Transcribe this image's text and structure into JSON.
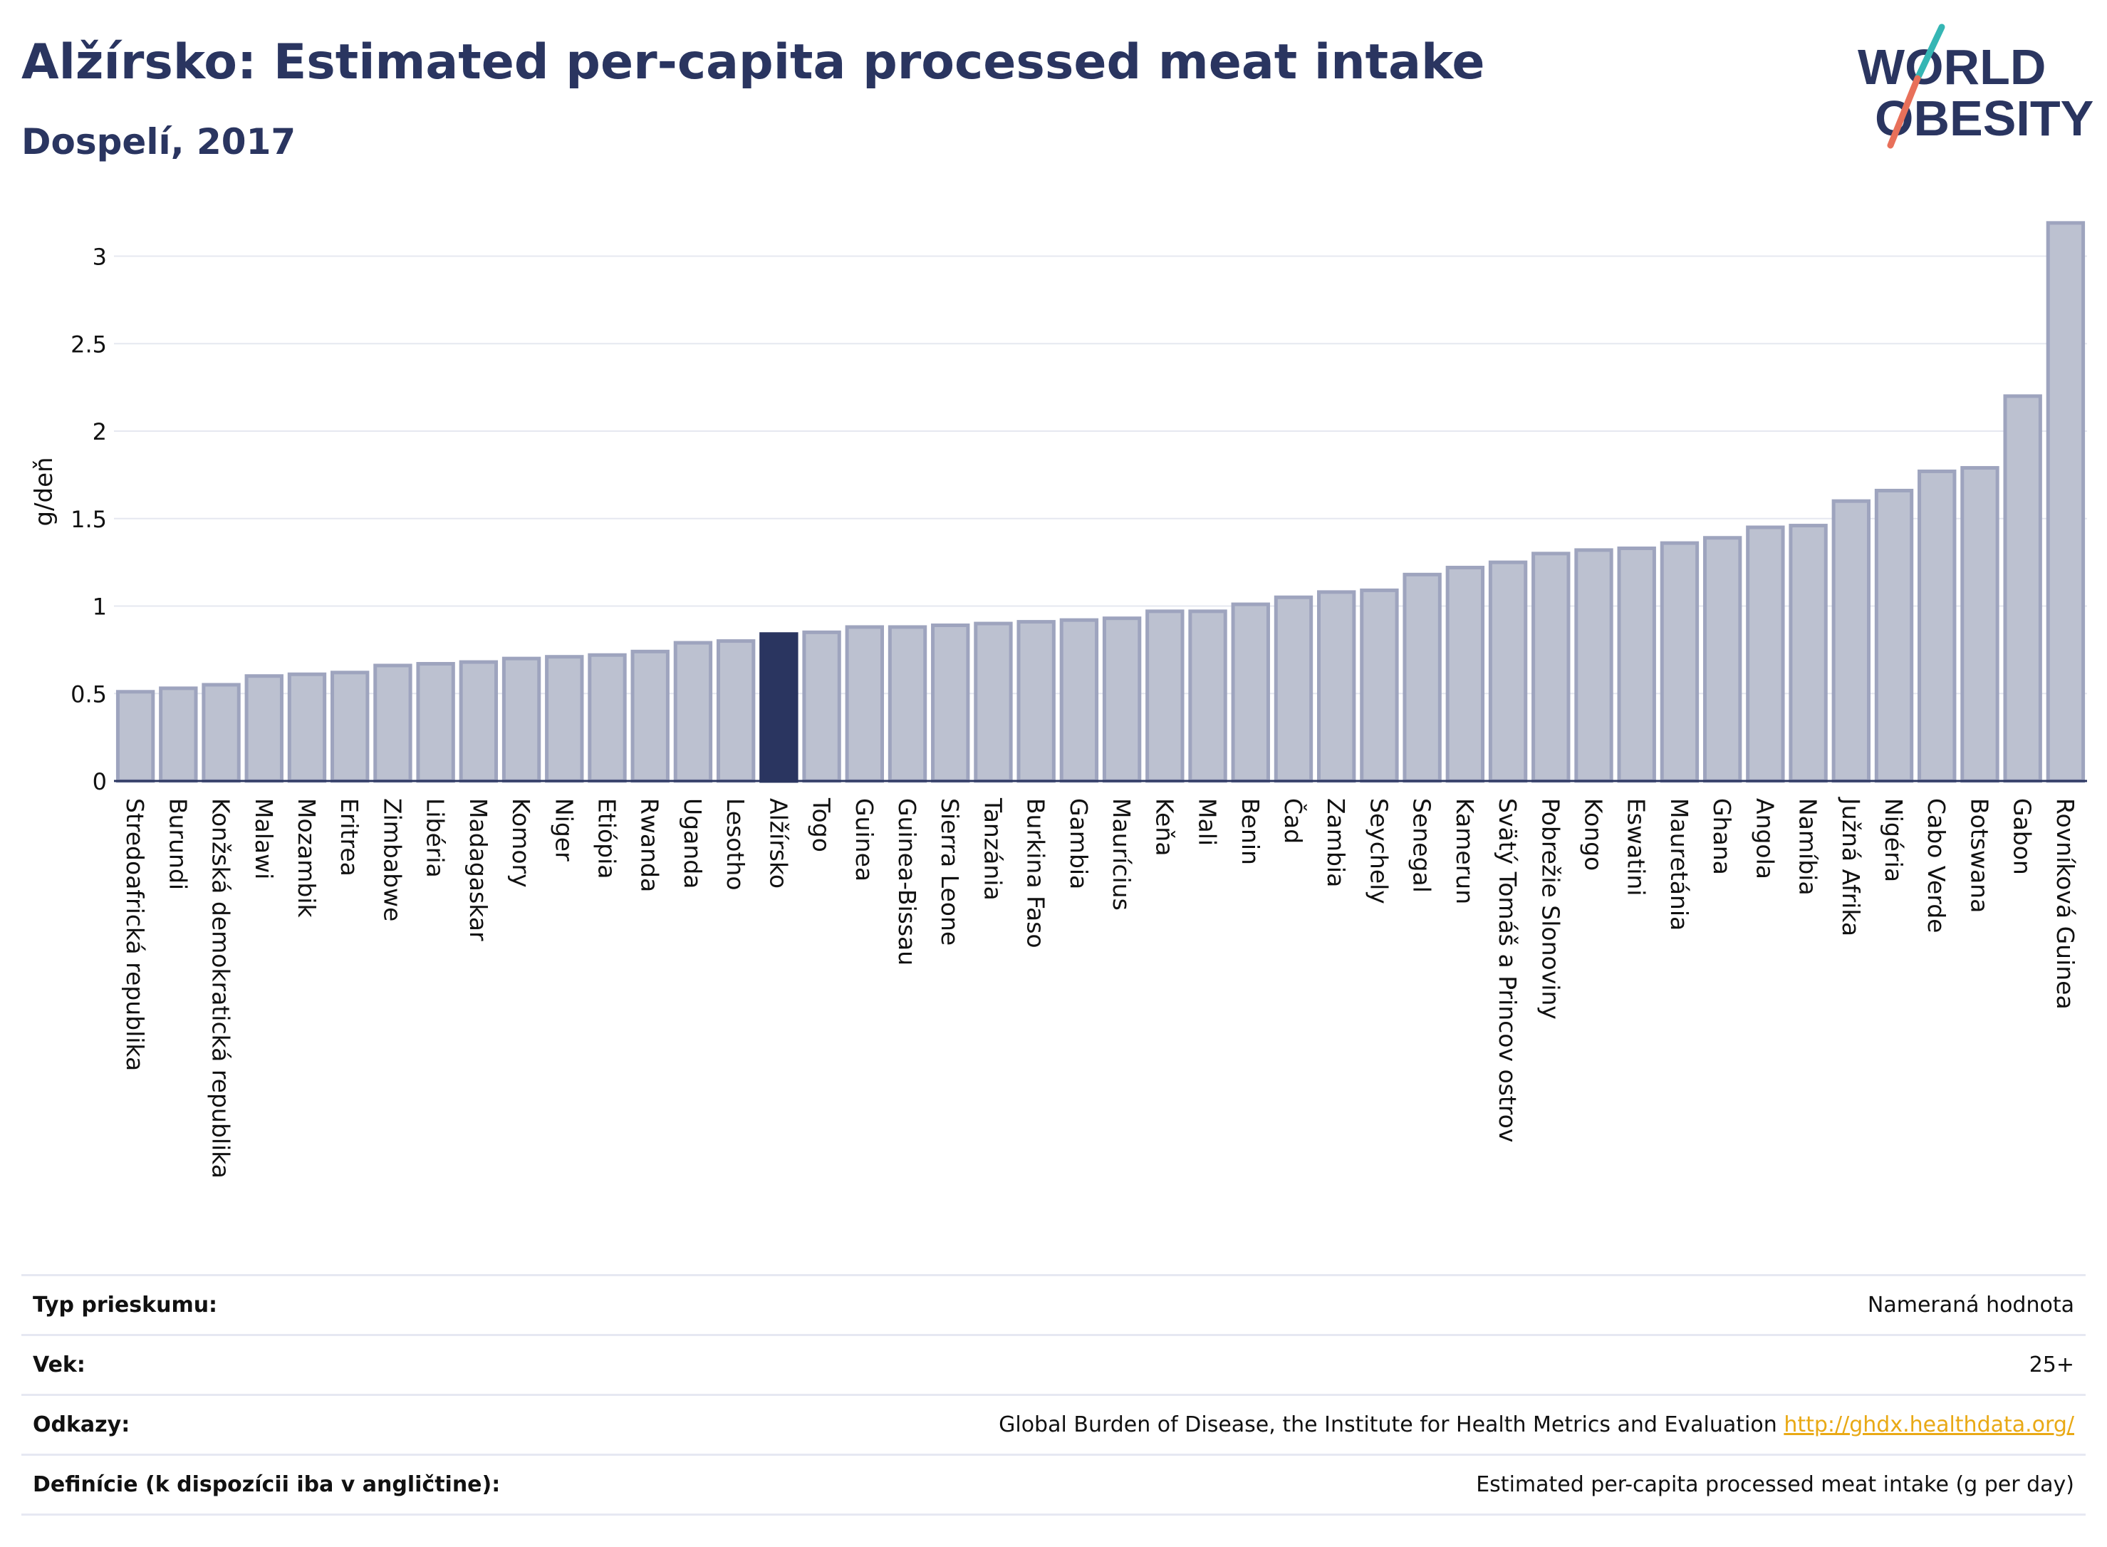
{
  "header": {
    "title": "Alžírsko: Estimated per-capita processed meat intake",
    "subtitle": "Dospelí, 2017"
  },
  "logo": {
    "line1": "WORLD",
    "line2": "OBESITY"
  },
  "colors": {
    "bar": "#bcc1d0",
    "bar_border": "#9ea4be",
    "highlight": "#2a3560",
    "grid": "#e6e8f0",
    "axis": "#2a3560",
    "logo_teal": "#35b6b4",
    "logo_coral": "#e8705a",
    "link": "#e9a915"
  },
  "chart_data": {
    "type": "bar",
    "ylabel": "g/deň",
    "ylim": [
      0,
      3.3
    ],
    "yticks": [
      0,
      0.5,
      1,
      1.5,
      2,
      2.5,
      3
    ],
    "ytick_labels": [
      "0",
      "0.5",
      "1",
      "1.5",
      "2",
      "2.5",
      "3"
    ],
    "grid": true,
    "highlight": "Alžírsko",
    "categories": [
      "Stredoafrická republika",
      "Burundi",
      "Konžská demokratická republika",
      "Malawi",
      "Mozambik",
      "Eritrea",
      "Zimbabwe",
      "Libéria",
      "Madagaskar",
      "Komory",
      "Niger",
      "Etiópia",
      "Rwanda",
      "Uganda",
      "Lesotho",
      "Alžírsko",
      "Togo",
      "Guinea",
      "Guinea-Bissau",
      "Sierra Leone",
      "Tanzánia",
      "Burkina Faso",
      "Gambia",
      "Maurícius",
      "Keňa",
      "Mali",
      "Benin",
      "Čad",
      "Zambia",
      "Seychely",
      "Senegal",
      "Kamerun",
      "Svätý Tomáš a Princov ostrov",
      "Pobrežie Slonoviny",
      "Kongo",
      "Eswatini",
      "Mauretánia",
      "Ghana",
      "Angola",
      "Namíbia",
      "Južná Afrika",
      "Nigéria",
      "Cabo Verde",
      "Botswana",
      "Gabon",
      "Rovníková Guinea"
    ],
    "values": [
      0.51,
      0.53,
      0.55,
      0.6,
      0.61,
      0.62,
      0.66,
      0.67,
      0.68,
      0.7,
      0.71,
      0.72,
      0.74,
      0.79,
      0.8,
      0.84,
      0.85,
      0.88,
      0.88,
      0.89,
      0.9,
      0.91,
      0.92,
      0.93,
      0.97,
      0.97,
      1.01,
      1.05,
      1.08,
      1.09,
      1.18,
      1.22,
      1.25,
      1.3,
      1.32,
      1.33,
      1.36,
      1.39,
      1.45,
      1.46,
      1.6,
      1.66,
      1.77,
      1.79,
      2.2,
      3.19
    ]
  },
  "info": {
    "rows": [
      {
        "key": "Typ prieskumu:",
        "value": "Nameraná hodnota"
      },
      {
        "key": "Vek:",
        "value": "25+"
      },
      {
        "key": "Odkazy:",
        "value": "Global Burden of Disease, the Institute for Health Metrics and Evaluation",
        "link": "http://ghdx.healthdata.org/"
      },
      {
        "key": "Definície (k dispozícii iba v angličtine):",
        "value": "Estimated per-capita processed meat intake (g per day)"
      }
    ]
  }
}
